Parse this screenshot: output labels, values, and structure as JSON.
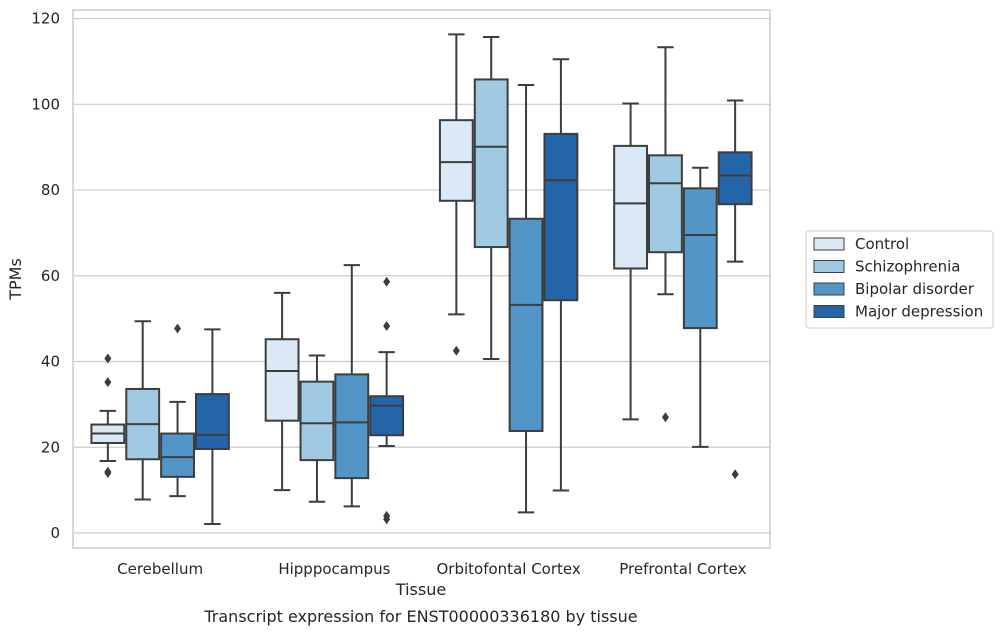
{
  "caption": "Transcript expression for ENST00000336180 by tissue",
  "chart_data": {
    "type": "box",
    "xlabel": "Tissue",
    "ylabel": "TPMs",
    "ylim": [
      -3.5,
      122
    ],
    "yticks": [
      0,
      20,
      40,
      60,
      80,
      100,
      120
    ],
    "grid": "horizontal",
    "legend_position": "right",
    "categories": [
      "Cerebellum",
      "Hipppocampus",
      "Orbitofontal Cortex",
      "Prefrontal Cortex"
    ],
    "series": [
      {
        "name": "Control",
        "color": "#dbe9f6",
        "boxes": [
          {
            "whisker_low": 16.8,
            "q1": 21.0,
            "median": 23.2,
            "q3": 25.3,
            "whisker_high": 28.5,
            "outliers": [
              40.7,
              35.2,
              14.3,
              14.0
            ]
          },
          {
            "whisker_low": 10.0,
            "q1": 26.2,
            "median": 37.8,
            "q3": 45.2,
            "whisker_high": 56.0,
            "outliers": []
          },
          {
            "whisker_low": 51.0,
            "q1": 77.5,
            "median": 86.5,
            "q3": 96.3,
            "whisker_high": 116.3,
            "outliers": [
              42.5
            ]
          },
          {
            "whisker_low": 26.5,
            "q1": 61.7,
            "median": 76.9,
            "q3": 90.3,
            "whisker_high": 100.2,
            "outliers": []
          }
        ]
      },
      {
        "name": "Schizophrenia",
        "color": "#9fcae1",
        "boxes": [
          {
            "whisker_low": 7.8,
            "q1": 17.2,
            "median": 25.4,
            "q3": 33.6,
            "whisker_high": 49.4,
            "outliers": []
          },
          {
            "whisker_low": 7.3,
            "q1": 17.0,
            "median": 25.6,
            "q3": 35.3,
            "whisker_high": 41.4,
            "outliers": []
          },
          {
            "whisker_low": 40.6,
            "q1": 66.7,
            "median": 90.1,
            "q3": 105.8,
            "whisker_high": 115.7,
            "outliers": []
          },
          {
            "whisker_low": 55.7,
            "q1": 65.5,
            "median": 81.6,
            "q3": 88.1,
            "whisker_high": 113.3,
            "outliers": [
              27.0
            ]
          }
        ]
      },
      {
        "name": "Bipolar disorder",
        "color": "#5296c8",
        "boxes": [
          {
            "whisker_low": 8.6,
            "q1": 13.1,
            "median": 17.7,
            "q3": 23.2,
            "whisker_high": 30.6,
            "outliers": [
              47.7
            ]
          },
          {
            "whisker_low": 6.2,
            "q1": 12.8,
            "median": 25.8,
            "q3": 37.0,
            "whisker_high": 62.5,
            "outliers": []
          },
          {
            "whisker_low": 4.8,
            "q1": 23.8,
            "median": 53.2,
            "q3": 73.3,
            "whisker_high": 104.5,
            "outliers": []
          },
          {
            "whisker_low": 20.1,
            "q1": 47.8,
            "median": 69.5,
            "q3": 80.4,
            "whisker_high": 85.2,
            "outliers": []
          }
        ]
      },
      {
        "name": "Major depression",
        "color": "#2464a8",
        "boxes": [
          {
            "whisker_low": 2.1,
            "q1": 19.6,
            "median": 22.9,
            "q3": 32.4,
            "whisker_high": 47.5,
            "outliers": []
          },
          {
            "whisker_low": 20.3,
            "q1": 22.8,
            "median": 29.7,
            "q3": 31.9,
            "whisker_high": 42.2,
            "outliers": [
              58.6,
              48.3,
              4.0,
              3.2
            ]
          },
          {
            "whisker_low": 9.9,
            "q1": 54.3,
            "median": 82.3,
            "q3": 93.1,
            "whisker_high": 110.5,
            "outliers": []
          },
          {
            "whisker_low": 63.3,
            "q1": 76.7,
            "median": 83.4,
            "q3": 88.8,
            "whisker_high": 100.9,
            "outliers": [
              13.7
            ]
          }
        ]
      }
    ]
  }
}
